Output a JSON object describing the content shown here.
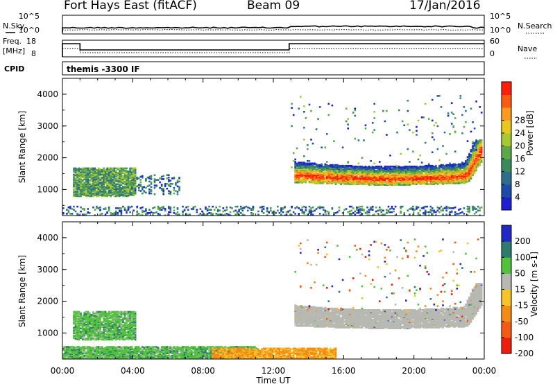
{
  "header": {
    "radar": "Fort Hays East (fitACF)",
    "beam": "Beam 09",
    "date": "17/Jan/2016"
  },
  "top_panels": {
    "nsky_label": "N.Sky",
    "nsky_ticks": [
      "10^5",
      "10^0"
    ],
    "nsearch_label": "N.Search",
    "nsearch_ticks": [
      "10^5",
      "10^0"
    ],
    "freq_label": "Freq.",
    "freq_unit": "[MHz]",
    "freq_ticks": [
      "18",
      "8"
    ],
    "nave_label": "Nave",
    "nave_ticks": [
      "60",
      "0"
    ],
    "cpid_label": "CPID",
    "cpid_text": "themis -3300 IF"
  },
  "chart_data": [
    {
      "type": "heatmap",
      "name": "power",
      "ylabel": "Slant Range [km]",
      "ylim": [
        180,
        4500
      ],
      "yticks": [
        "1000",
        "2000",
        "3000",
        "4000"
      ],
      "xlim": [
        0,
        24
      ],
      "colorbar_label": "Power [dB]",
      "colorbar_ticks": [
        "4",
        "8",
        "12",
        "16",
        "20",
        "24",
        "28"
      ],
      "colorbar_colors": [
        "#1e1ed2",
        "#1e4aa8",
        "#2e6e8c",
        "#3a8a5a",
        "#5aa84a",
        "#a8c832",
        "#e8c81e",
        "#ff9a1e",
        "#ff5a14",
        "#ff1e0a"
      ],
      "regions": [
        {
          "t": [
            0.6,
            4.2
          ],
          "r": [
            820,
            1700
          ],
          "level": "mid"
        },
        {
          "t": [
            3.8,
            6.6
          ],
          "r": [
            880,
            1500
          ],
          "level": "low"
        },
        {
          "t": [
            0,
            24
          ],
          "r": [
            190,
            500
          ],
          "level": "low"
        },
        {
          "t": [
            13.2,
            23.9
          ],
          "r": [
            1150,
            2600
          ],
          "level": "high"
        },
        {
          "t": [
            13.0,
            23.9
          ],
          "r": [
            1700,
            4000
          ],
          "level": "sparse"
        }
      ]
    },
    {
      "type": "heatmap",
      "name": "velocity",
      "xlabel": "Time UT",
      "ylabel": "Slant Range [km]",
      "ylim": [
        180,
        4500
      ],
      "yticks": [
        "1000",
        "2000",
        "3000",
        "4000"
      ],
      "xticks": [
        "00:00",
        "04:00",
        "08:00",
        "12:00",
        "16:00",
        "20:00",
        "00:00"
      ],
      "xlim": [
        0,
        24
      ],
      "colorbar_label": "Velocity [m s-1]",
      "colorbar_ticks": [
        "200",
        "100",
        "50",
        "15",
        "-15",
        "-50",
        "-100",
        "-200"
      ],
      "colorbar_colors": [
        "#2228c8",
        "#2e7a6e",
        "#52c23c",
        "#b8b8b2",
        "#f6c428",
        "#f48c14",
        "#f45a14",
        "#ee1e0c"
      ],
      "regions": [
        {
          "t": [
            0.6,
            4.2
          ],
          "r": [
            820,
            1700
          ],
          "value": "positive"
        },
        {
          "t": [
            0,
            11
          ],
          "r": [
            190,
            600
          ],
          "value": "positive"
        },
        {
          "t": [
            8.5,
            15.5
          ],
          "r": [
            190,
            550
          ],
          "value": "negative"
        },
        {
          "t": [
            13.2,
            23.9
          ],
          "r": [
            1150,
            2600
          ],
          "value": "ground"
        },
        {
          "t": [
            13.0,
            23.9
          ],
          "r": [
            1700,
            4000
          ],
          "value": "sparse"
        }
      ]
    }
  ]
}
